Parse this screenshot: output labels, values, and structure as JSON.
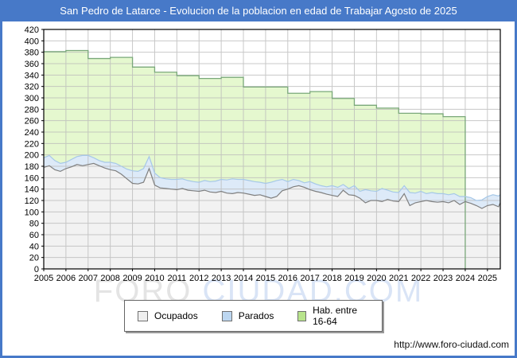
{
  "window": {
    "title": "San Pedro de Latarce - Evolucion de la poblacion en edad de Trabajar Agosto de 2025"
  },
  "footer": {
    "url": "http://www.foro-ciudad.com"
  },
  "watermark": {
    "part1": "FORO ",
    "part2": "CIUDAD.COM"
  },
  "legend": {
    "items": [
      {
        "label": "Ocupados",
        "swatch": "#efefef"
      },
      {
        "label": "Parados",
        "swatch": "#bcd6f0"
      },
      {
        "label": "Hab. entre 16-64",
        "swatch": "#b8e48c"
      }
    ]
  },
  "colors": {
    "accent_blue": "#4779c8",
    "grid": "#bbbbbb",
    "plot_border": "#000000",
    "axis_text": "#000000"
  },
  "chart_data": {
    "type": "area",
    "title": "San Pedro de Latarce - Evolucion de la poblacion en edad de Trabajar Agosto de 2025",
    "xlabel": "",
    "ylabel": "",
    "x_axis": {
      "start": 2005,
      "end": 2025.58,
      "tick_from": 2005,
      "tick_to": 2025
    },
    "y_axis": {
      "min": 0,
      "max": 420,
      "step": 20
    },
    "grid": true,
    "legend_position": "bottom-center",
    "series": [
      {
        "name": "Ocupados",
        "kind": "area",
        "line_color": "#7f7f7f",
        "fill_color": "#f2f2f2",
        "x_start": 2005,
        "x_step": 0.25,
        "x_last": 2025.58,
        "values": [
          178,
          181,
          174,
          171,
          176,
          179,
          183,
          181,
          183,
          185,
          181,
          177,
          174,
          172,
          166,
          158,
          150,
          149,
          152,
          176,
          147,
          142,
          141,
          140,
          139,
          141,
          138,
          137,
          136,
          138,
          135,
          134,
          136,
          133,
          132,
          134,
          133,
          131,
          129,
          130,
          127,
          124,
          127,
          137,
          140,
          144,
          146,
          143,
          139,
          136,
          134,
          131,
          129,
          127,
          138,
          130,
          129,
          124,
          116,
          120,
          120,
          118,
          122,
          119,
          118,
          132,
          111,
          116,
          118,
          120,
          118,
          117,
          118,
          116,
          120,
          113,
          118,
          115,
          111,
          106,
          111,
          113,
          109,
          116
        ]
      },
      {
        "name": "Parados",
        "kind": "area-stacked-on-previous",
        "line_color": "#a6c8e8",
        "fill_color": "#ddeaf8",
        "x_start": 2005,
        "x_step": 0.25,
        "x_last": 2025.58,
        "values": [
          17,
          18,
          16,
          14,
          11,
          13,
          14,
          18,
          16,
          10,
          9,
          10,
          13,
          13,
          14,
          17,
          22,
          22,
          24,
          21,
          21,
          18,
          17,
          17,
          18,
          17,
          17,
          16,
          16,
          17,
          18,
          20,
          21,
          23,
          26,
          23,
          24,
          24,
          24,
          22,
          23,
          28,
          28,
          20,
          13,
          13,
          9,
          8,
          14,
          13,
          12,
          13,
          17,
          16,
          10,
          11,
          17,
          12,
          23,
          17,
          16,
          23,
          16,
          16,
          16,
          14,
          23,
          17,
          18,
          12,
          16,
          15,
          14,
          14,
          12,
          14,
          9,
          10,
          9,
          15,
          16,
          17,
          19,
          14
        ]
      },
      {
        "name": "Hab. entre 16-64",
        "kind": "annual-step",
        "line_color": "#7aa87a",
        "fill_color": "#e5f8cf",
        "years": [
          2005,
          2006,
          2007,
          2008,
          2009,
          2010,
          2011,
          2012,
          2013,
          2014,
          2015,
          2016,
          2017,
          2018,
          2019,
          2020,
          2021,
          2022,
          2023
        ],
        "values": [
          381,
          383,
          369,
          371,
          354,
          345,
          339,
          334,
          336,
          319,
          319,
          308,
          311,
          299,
          287,
          282,
          273,
          272,
          267
        ],
        "ends_at": 2024
      }
    ]
  }
}
